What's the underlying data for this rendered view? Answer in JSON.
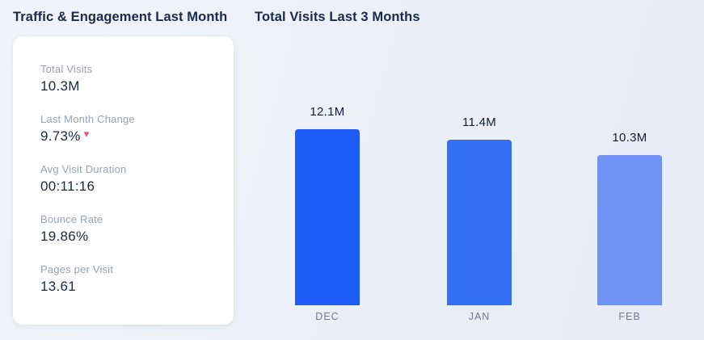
{
  "left_panel": {
    "title": "Traffic & Engagement Last Month",
    "stats": [
      {
        "label": "Total Visits",
        "value": "10.3M"
      },
      {
        "label": "Last Month Change",
        "value": "9.73%",
        "trend": "down",
        "trend_color": "#e8516d"
      },
      {
        "label": "Avg Visit Duration",
        "value": "00:11:16"
      },
      {
        "label": "Bounce Rate",
        "value": "19.86%"
      },
      {
        "label": "Pages per Visit",
        "value": "13.61"
      }
    ]
  },
  "right_panel": {
    "title": "Total Visits Last 3 Months"
  },
  "icons": {
    "trend_down": "▾"
  },
  "chart_data": {
    "type": "bar",
    "title": "Total Visits Last 3 Months",
    "categories": [
      "DEC",
      "JAN",
      "FEB"
    ],
    "values": [
      12.1,
      11.4,
      10.3
    ],
    "unit": "M",
    "value_labels": [
      "12.1M",
      "11.4M",
      "10.3M"
    ],
    "bar_colors": [
      "#1f5bf7",
      "#3470f5",
      "#6e93f5"
    ],
    "ylim": [
      0,
      12.1
    ],
    "xlabel": "",
    "ylabel": "",
    "grid": false,
    "legend": false,
    "value_label_position": "above-bar",
    "category_label_position": "below-bar"
  }
}
